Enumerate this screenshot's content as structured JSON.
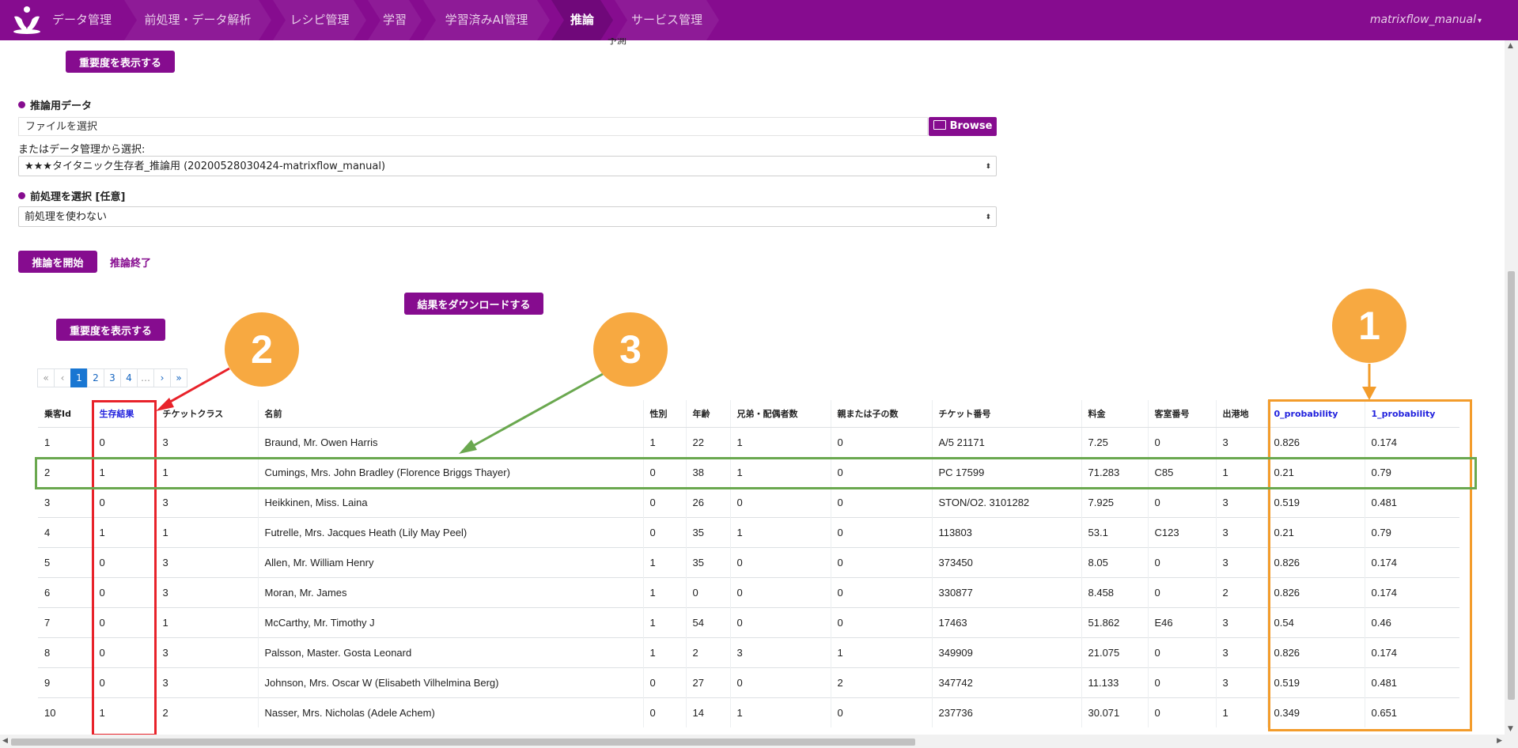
{
  "nav": {
    "items": [
      "データ管理",
      "前処理・データ解析",
      "レシピ管理",
      "学習",
      "学習済みAI管理",
      "推論",
      "サービス管理"
    ],
    "active_index": 5,
    "user": "matrixflow_manual"
  },
  "page": {
    "top_partial_text": "予測",
    "show_importance_label": "重要度を表示する",
    "inference_data_label": "推論用データ",
    "file_placeholder": "ファイルを選択",
    "browse_label": "Browse",
    "or_select_label": "またはデータ管理から選択:",
    "dataset_selected": "★★★タイタニック生存者_推論用 (20200528030424-matrixflow_manual)",
    "preprocess_label": "前処理を選択 [任意]",
    "preprocess_selected": "前処理を使わない",
    "start_button": "推論を開始",
    "end_link": "推論終了",
    "download_button": "結果をダウンロードする",
    "importance_button_2": "重要度を表示する"
  },
  "pagination": {
    "first": "«",
    "prev": "‹",
    "pages": [
      "1",
      "2",
      "3",
      "4"
    ],
    "ellipsis": "…",
    "next": "›",
    "last": "»",
    "active": "1"
  },
  "table": {
    "headers": [
      "乗客Id",
      "生存結果",
      "チケットクラス",
      "名前",
      "性別",
      "年齢",
      "兄弟・配偶者数",
      "親または子の数",
      "チケット番号",
      "料金",
      "客室番号",
      "出港地",
      "0_probability",
      "1_probability"
    ],
    "rows": [
      [
        "1",
        "0",
        "3",
        "Braund, Mr. Owen Harris",
        "1",
        "22",
        "1",
        "0",
        "A/5 21171",
        "7.25",
        "0",
        "3",
        "0.826",
        "0.174"
      ],
      [
        "2",
        "1",
        "1",
        "Cumings, Mrs. John Bradley (Florence Briggs Thayer)",
        "0",
        "38",
        "1",
        "0",
        "PC 17599",
        "71.283",
        "C85",
        "1",
        "0.21",
        "0.79"
      ],
      [
        "3",
        "0",
        "3",
        "Heikkinen, Miss. Laina",
        "0",
        "26",
        "0",
        "0",
        "STON/O2. 3101282",
        "7.925",
        "0",
        "3",
        "0.519",
        "0.481"
      ],
      [
        "4",
        "1",
        "1",
        "Futrelle, Mrs. Jacques Heath (Lily May Peel)",
        "0",
        "35",
        "1",
        "0",
        "113803",
        "53.1",
        "C123",
        "3",
        "0.21",
        "0.79"
      ],
      [
        "5",
        "0",
        "3",
        "Allen, Mr. William Henry",
        "1",
        "35",
        "0",
        "0",
        "373450",
        "8.05",
        "0",
        "3",
        "0.826",
        "0.174"
      ],
      [
        "6",
        "0",
        "3",
        "Moran, Mr. James",
        "1",
        "0",
        "0",
        "0",
        "330877",
        "8.458",
        "0",
        "2",
        "0.826",
        "0.174"
      ],
      [
        "7",
        "0",
        "1",
        "McCarthy, Mr. Timothy J",
        "1",
        "54",
        "0",
        "0",
        "17463",
        "51.862",
        "E46",
        "3",
        "0.54",
        "0.46"
      ],
      [
        "8",
        "0",
        "3",
        "Palsson, Master. Gosta Leonard",
        "1",
        "2",
        "3",
        "1",
        "349909",
        "21.075",
        "0",
        "3",
        "0.826",
        "0.174"
      ],
      [
        "9",
        "0",
        "3",
        "Johnson, Mrs. Oscar W (Elisabeth Vilhelmina Berg)",
        "0",
        "27",
        "0",
        "2",
        "347742",
        "11.133",
        "0",
        "3",
        "0.519",
        "0.481"
      ],
      [
        "10",
        "1",
        "2",
        "Nasser, Mrs. Nicholas (Adele Achem)",
        "0",
        "14",
        "1",
        "0",
        "237736",
        "30.071",
        "0",
        "1",
        "0.349",
        "0.651"
      ]
    ]
  },
  "annotations": {
    "callout_1": "1",
    "callout_2": "2",
    "callout_3": "3",
    "colors": {
      "orange": "#f7a941",
      "red": "#e8222a",
      "green": "#6aa84f",
      "box_orange": "#f39c2b"
    }
  },
  "colors": {
    "brand": "#860c8f",
    "link_blue": "#2222dd",
    "page_active": "#1976d2"
  }
}
